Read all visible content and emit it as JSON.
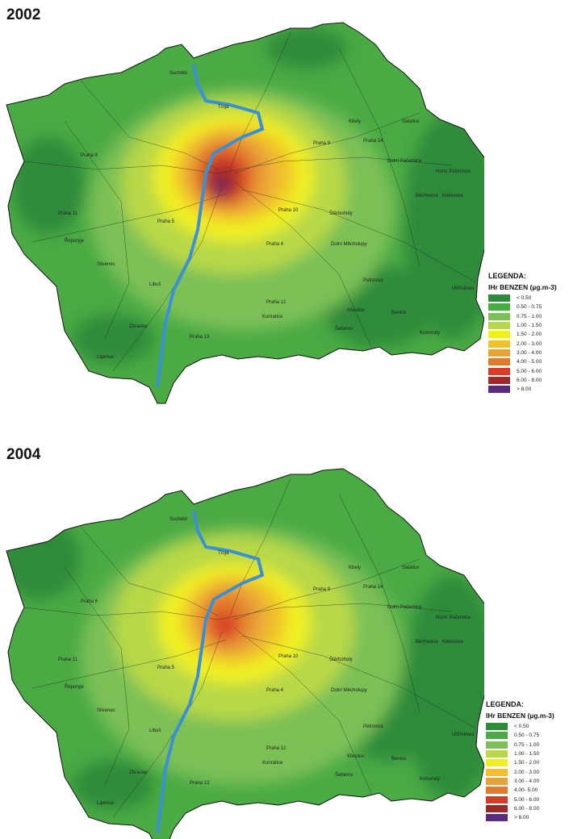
{
  "panels": [
    {
      "year": "2002",
      "legend": {
        "title": "LEGENDA:",
        "subtitle": "IHr BENZEN",
        "unit": "(µg.m-3)",
        "items": [
          {
            "label": "< 0.50",
            "color": "#2e8b3a"
          },
          {
            "label": "0.50 - 0.75",
            "color": "#4aaa44"
          },
          {
            "label": "0.75 - 1.00",
            "color": "#7cc056"
          },
          {
            "label": "1.00 - 1.50",
            "color": "#b8d846"
          },
          {
            "label": "1.50 - 2.00",
            "color": "#f0f020"
          },
          {
            "label": "2.00 - 3.00",
            "color": "#f2c12c"
          },
          {
            "label": "3.00 - 4.00",
            "color": "#e9a13a"
          },
          {
            "label": "4.00 - 5.00",
            "color": "#e27a2c"
          },
          {
            "label": "5.00 - 6.00",
            "color": "#d83b2a"
          },
          {
            "label": "6.00 - 8.00",
            "color": "#9b2a28"
          },
          {
            "label": "> 8.00",
            "color": "#5a2a7c"
          }
        ]
      },
      "places": [
        "Praha 6",
        "Praha 11",
        "Praha 5",
        "Praha 13",
        "Praha 14",
        "Praha 12",
        "Praha 10",
        "Praha 9",
        "Praha 4",
        "Suchdol",
        "Troja",
        "Kbely",
        "Satalice",
        "Běchovice",
        "Klánovice",
        "Lipence",
        "Zbraslav",
        "Slivenec",
        "Řeporyje",
        "Kunratice",
        "Uhříněves",
        "Benice",
        "Kolovraty",
        "Dolní Počernice",
        "Horní Počernice",
        "Štěrboholy",
        "Dolní Měcholupy",
        "Petrovice",
        "Křeslice",
        "Šeberov",
        "Libuš"
      ]
    },
    {
      "year": "2004",
      "legend": {
        "title": "LEGENDA:",
        "subtitle": "IHr BENZEN",
        "unit": "(µg.m-3)",
        "items": [
          {
            "label": "< 0.50",
            "color": "#2e8b3a"
          },
          {
            "label": "0.50 - 0.75",
            "color": "#4aaa44"
          },
          {
            "label": "0.75 - 1.00",
            "color": "#7cc056"
          },
          {
            "label": "1.00 - 1.50",
            "color": "#b8d846"
          },
          {
            "label": "1.50 - 2.00",
            "color": "#f0f020"
          },
          {
            "label": "2.00 - 3.00",
            "color": "#f2c12c"
          },
          {
            "label": "3.00 - 4.00",
            "color": "#e9a13a"
          },
          {
            "label": "4.00- 5.00",
            "color": "#e27a2c"
          },
          {
            "label": "5.00 - 6.00",
            "color": "#d83b2a"
          },
          {
            "label": "6.00 - 8.00",
            "color": "#9b2a28"
          },
          {
            "label": "> 8.00",
            "color": "#5a2a7c"
          }
        ]
      },
      "places": [
        "Praha 6",
        "Praha 11",
        "Praha 5",
        "Praha 13",
        "Praha 14",
        "Praha 12",
        "Praha 10",
        "Praha 9",
        "Praha 4",
        "Suchdol",
        "Troja",
        "Kbely",
        "Satalice",
        "Běchovice",
        "Klánovice",
        "Lipence",
        "Zbraslav",
        "Slivenec",
        "Řeporyje",
        "Kunratice",
        "Uhříněves",
        "Benice",
        "Kolovraty",
        "Dolní Počernice",
        "Horní Počernice",
        "Štěrboholy",
        "Dolní Měcholupy",
        "Petrovice",
        "Křeslice",
        "Šeberov",
        "Libuš"
      ]
    }
  ]
}
